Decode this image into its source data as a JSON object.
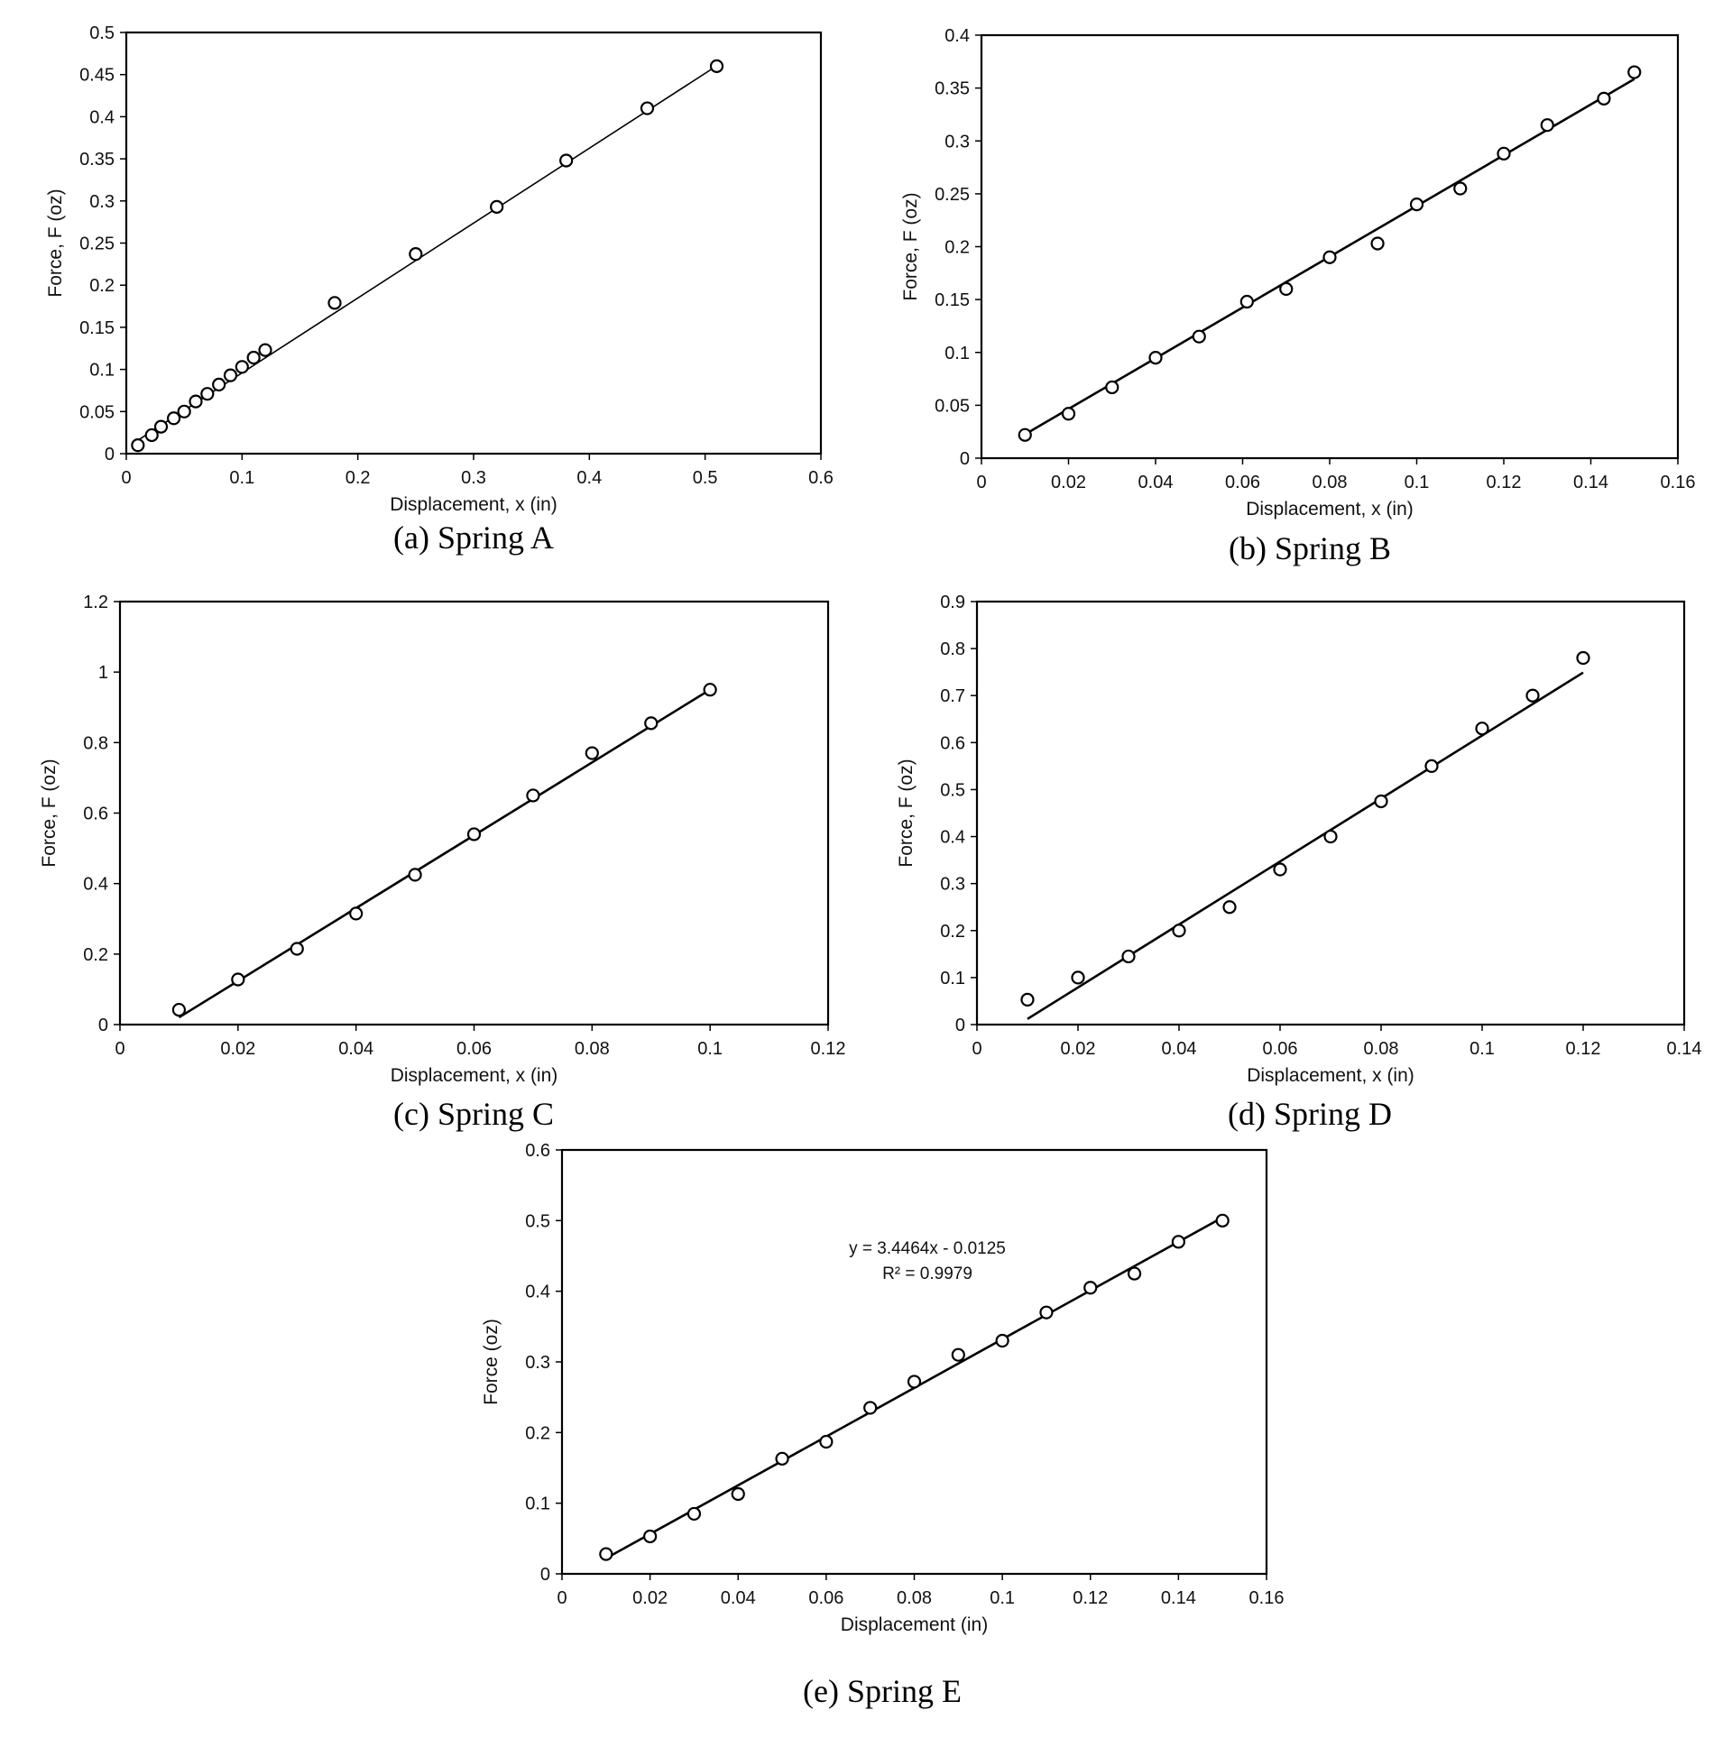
{
  "figure": {
    "panels": [
      {
        "id": "a",
        "caption": "(a) Spring A",
        "annotation": [],
        "chart_data": {
          "type": "scatter",
          "title": "",
          "xlabel": "Displacement, x (in)",
          "ylabel": "Force, F (oz)",
          "xlim": [
            0,
            0.6
          ],
          "ylim": [
            0,
            0.5
          ],
          "xticks": [
            "0",
            "0.1",
            "0.2",
            "0.3",
            "0.4",
            "0.5",
            "0.6"
          ],
          "yticks": [
            "0",
            "0.05",
            "0.1",
            "0.15",
            "0.2",
            "0.25",
            "0.3",
            "0.35",
            "0.4",
            "0.45",
            "0.5"
          ],
          "grid": false,
          "series": [
            {
              "x": [
                0.01,
                0.022,
                0.03,
                0.041,
                0.05,
                0.06,
                0.07,
                0.08,
                0.09,
                0.1,
                0.11,
                0.12,
                0.18,
                0.25,
                0.32,
                0.38,
                0.45,
                0.51
              ],
              "y": [
                0.01,
                0.022,
                0.032,
                0.042,
                0.05,
                0.062,
                0.071,
                0.082,
                0.093,
                0.103,
                0.114,
                0.123,
                0.179,
                0.237,
                0.293,
                0.348,
                0.41,
                0.46
              ]
            }
          ],
          "trendline": {
            "slope": 0.889,
            "intercept": 0.007,
            "x_range": [
              0.01,
              0.51
            ]
          }
        }
      },
      {
        "id": "b",
        "caption": "(b) Spring B",
        "annotation": [],
        "chart_data": {
          "type": "scatter",
          "title": "",
          "xlabel": "Displacement, x (in)",
          "ylabel": "Force, F (oz)",
          "xlim": [
            0,
            0.16
          ],
          "ylim": [
            0,
            0.4
          ],
          "xticks": [
            "0",
            "0.02",
            "0.04",
            "0.06",
            "0.08",
            "0.1",
            "0.12",
            "0.14",
            "0.16"
          ],
          "yticks": [
            "0",
            "0.05",
            "0.1",
            "0.15",
            "0.2",
            "0.25",
            "0.3",
            "0.35",
            "0.4"
          ],
          "grid": false,
          "series": [
            {
              "x": [
                0.01,
                0.02,
                0.03,
                0.04,
                0.05,
                0.061,
                0.07,
                0.08,
                0.091,
                0.1,
                0.11,
                0.12,
                0.13,
                0.143,
                0.15
              ],
              "y": [
                0.022,
                0.042,
                0.067,
                0.095,
                0.115,
                0.148,
                0.16,
                0.19,
                0.203,
                0.24,
                0.255,
                0.288,
                0.315,
                0.34,
                0.365
              ]
            }
          ],
          "trendline": {
            "slope": 2.4,
            "intercept": -0.0015,
            "x_range": [
              0.01,
              0.15
            ]
          }
        }
      },
      {
        "id": "c",
        "caption": "(c) Spring C",
        "annotation": [],
        "chart_data": {
          "type": "scatter",
          "title": "",
          "xlabel": "Displacement, x (in)",
          "ylabel": "Force, F (oz)",
          "xlim": [
            0,
            0.12
          ],
          "ylim": [
            0,
            1.2
          ],
          "xticks": [
            "0",
            "0.02",
            "0.04",
            "0.06",
            "0.08",
            "0.1",
            "0.12"
          ],
          "yticks": [
            "0",
            "0.2",
            "0.4",
            "0.6",
            "0.8",
            "1",
            "1.2"
          ],
          "grid": false,
          "series": [
            {
              "x": [
                0.01,
                0.02,
                0.03,
                0.04,
                0.05,
                0.06,
                0.07,
                0.08,
                0.09,
                0.1
              ],
              "y": [
                0.042,
                0.128,
                0.215,
                0.315,
                0.425,
                0.54,
                0.65,
                0.77,
                0.855,
                0.95
              ]
            }
          ],
          "trendline": {
            "slope": 10.333,
            "intercept": -0.083,
            "x_range": [
              0.01,
              0.1
            ]
          }
        }
      },
      {
        "id": "d",
        "caption": "(d) Spring D",
        "annotation": [],
        "chart_data": {
          "type": "scatter",
          "title": "",
          "xlabel": "Displacement, x (in)",
          "ylabel": "Force, F (oz)",
          "xlim": [
            0,
            0.14
          ],
          "ylim": [
            0,
            0.9
          ],
          "xticks": [
            "0",
            "0.02",
            "0.04",
            "0.06",
            "0.08",
            "0.1",
            "0.12",
            "0.14"
          ],
          "yticks": [
            "0",
            "0.1",
            "0.2",
            "0.3",
            "0.4",
            "0.5",
            "0.6",
            "0.7",
            "0.8",
            "0.9"
          ],
          "grid": false,
          "series": [
            {
              "x": [
                0.01,
                0.02,
                0.03,
                0.04,
                0.05,
                0.06,
                0.07,
                0.08,
                0.09,
                0.1,
                0.11,
                0.12
              ],
              "y": [
                0.053,
                0.1,
                0.145,
                0.2,
                0.25,
                0.33,
                0.4,
                0.475,
                0.55,
                0.63,
                0.7,
                0.78
              ]
            }
          ],
          "trendline": {
            "slope": 6.7,
            "intercept": -0.055,
            "x_range": [
              0.01,
              0.12
            ]
          }
        }
      },
      {
        "id": "e",
        "caption": "(e) Spring E",
        "annotation": [
          "y = 3.4464x - 0.0125",
          "R² = 0.9979"
        ],
        "chart_data": {
          "type": "scatter",
          "title": "",
          "xlabel": "Displacement (in)",
          "ylabel": "Force (oz)",
          "xlim": [
            0,
            0.16
          ],
          "ylim": [
            0,
            0.6
          ],
          "xticks": [
            "0",
            "0.02",
            "0.04",
            "0.06",
            "0.08",
            "0.1",
            "0.12",
            "0.14",
            "0.16"
          ],
          "yticks": [
            "0",
            "0.1",
            "0.2",
            "0.3",
            "0.4",
            "0.5",
            "0.6"
          ],
          "grid": false,
          "series": [
            {
              "x": [
                0.01,
                0.02,
                0.03,
                0.04,
                0.05,
                0.06,
                0.07,
                0.08,
                0.09,
                0.1,
                0.11,
                0.12,
                0.13,
                0.14,
                0.15
              ],
              "y": [
                0.028,
                0.053,
                0.085,
                0.113,
                0.163,
                0.187,
                0.235,
                0.272,
                0.31,
                0.33,
                0.37,
                0.405,
                0.425,
                0.47,
                0.5
              ]
            }
          ],
          "trendline": {
            "slope": 3.4464,
            "intercept": -0.0125,
            "x_range": [
              0.01,
              0.15
            ]
          }
        }
      }
    ]
  }
}
